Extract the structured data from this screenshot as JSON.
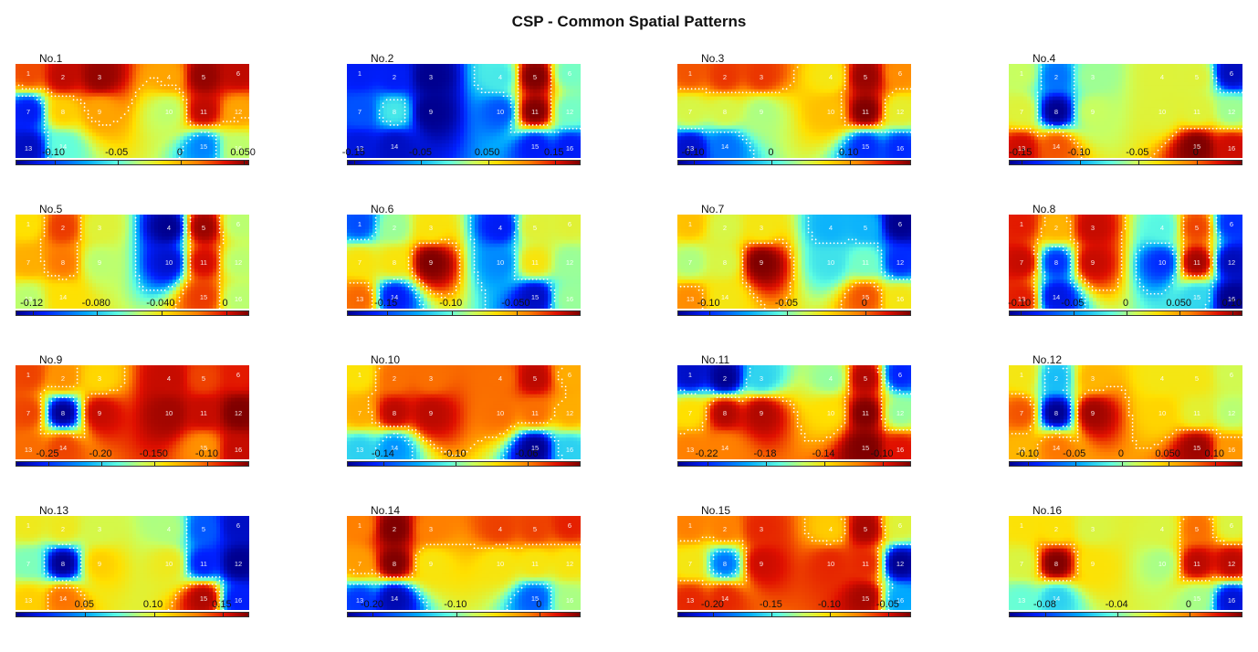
{
  "title": "CSP - Common Spatial Patterns",
  "colormap": [
    "#00008f",
    "#0020ff",
    "#00a8ff",
    "#60ffe0",
    "#c8ff60",
    "#ffe000",
    "#ff8000",
    "#e01000",
    "#7f0000"
  ],
  "contour_color": "#ffffff",
  "electrode_layout": {
    "rows": [
      [
        1,
        2,
        3,
        4,
        5,
        6
      ],
      [
        7,
        8,
        9,
        10,
        11,
        12
      ],
      [
        13,
        14,
        15,
        16
      ]
    ]
  },
  "chart_data": [
    {
      "type": "heatmap",
      "title": "No.1",
      "ticks": [
        "-0.10",
        "-0.05",
        "0",
        "0.050"
      ],
      "range": [
        -0.13,
        0.055
      ],
      "values": [
        0.02,
        0.04,
        0.05,
        0.0,
        0.05,
        0.04,
        -0.11,
        -0.01,
        0.0,
        -0.04,
        0.04,
        0.0,
        -0.12,
        -0.06,
        -0.09,
        -0.04
      ]
    },
    {
      "type": "heatmap",
      "title": "No.2",
      "ticks": [
        "-0.15",
        "-0.05",
        "0.050",
        "0.15"
      ],
      "range": [
        -0.16,
        0.19
      ],
      "values": [
        -0.12,
        -0.12,
        -0.16,
        -0.04,
        0.19,
        -0.02,
        -0.1,
        -0.04,
        -0.16,
        -0.1,
        0.19,
        -0.02,
        -0.13,
        -0.14,
        -0.12,
        -0.12
      ]
    },
    {
      "type": "heatmap",
      "title": "No.3",
      "ticks": [
        "-0.10",
        "0",
        "0.10"
      ],
      "range": [
        -0.12,
        0.18
      ],
      "values": [
        0.12,
        0.13,
        0.13,
        0.06,
        0.17,
        0.1,
        0.04,
        0.04,
        0.02,
        0.08,
        0.18,
        0.05,
        -0.1,
        -0.06,
        -0.08,
        -0.08
      ]
    },
    {
      "type": "heatmap",
      "title": "No.4",
      "ticks": [
        "-0.15",
        "-0.10",
        "-0.05",
        "0"
      ],
      "range": [
        -0.16,
        0.04
      ],
      "values": [
        -0.06,
        -0.12,
        -0.07,
        -0.05,
        -0.05,
        -0.15,
        -0.05,
        -0.16,
        -0.06,
        -0.05,
        -0.05,
        -0.07,
        0.02,
        0.0,
        0.04,
        0.02
      ]
    },
    {
      "type": "heatmap",
      "title": "No.5",
      "ticks": [
        "-0.12",
        "-0.080",
        "-0.040",
        "0"
      ],
      "range": [
        -0.13,
        0.015
      ],
      "values": [
        -0.04,
        -0.01,
        -0.05,
        -0.13,
        0.01,
        -0.06,
        -0.03,
        -0.02,
        -0.06,
        -0.12,
        0.0,
        -0.06,
        -0.06,
        -0.04,
        -0.01,
        -0.06
      ]
    },
    {
      "type": "heatmap",
      "title": "No.6",
      "ticks": [
        "-0.15",
        "-0.10",
        "-0.050"
      ],
      "range": [
        -0.18,
        0.0
      ],
      "values": [
        -0.15,
        -0.1,
        -0.07,
        -0.16,
        -0.08,
        -0.08,
        -0.07,
        -0.07,
        0.0,
        -0.14,
        -0.07,
        -0.1,
        -0.04,
        -0.16,
        -0.17,
        -0.1
      ]
    },
    {
      "type": "heatmap",
      "title": "No.7",
      "ticks": [
        "-0.10",
        "-0.05",
        "0"
      ],
      "range": [
        -0.12,
        0.03
      ],
      "values": [
        -0.02,
        -0.04,
        -0.03,
        -0.08,
        -0.08,
        -0.12,
        -0.05,
        -0.04,
        0.03,
        -0.07,
        -0.06,
        -0.1,
        -0.01,
        -0.03,
        0.0,
        -0.03
      ]
    },
    {
      "type": "heatmap",
      "title": "No.8",
      "ticks": [
        "-0.10",
        "-0.05",
        "0",
        "0.050",
        "0.10"
      ],
      "range": [
        -0.11,
        0.11
      ],
      "values": [
        0.08,
        0.04,
        0.09,
        -0.03,
        0.07,
        -0.08,
        0.09,
        -0.08,
        0.09,
        -0.08,
        0.1,
        -0.1,
        0.08,
        -0.09,
        -0.04,
        -0.11
      ]
    },
    {
      "type": "heatmap",
      "title": "No.9",
      "ticks": [
        "-0.25",
        "-0.20",
        "-0.150",
        "-0.10"
      ],
      "range": [
        -0.28,
        -0.06
      ],
      "values": [
        -0.1,
        -0.12,
        -0.14,
        -0.08,
        -0.1,
        -0.09,
        -0.1,
        -0.28,
        -0.08,
        -0.07,
        -0.08,
        -0.06,
        -0.11,
        -0.1,
        -0.12,
        -0.08
      ]
    },
    {
      "type": "heatmap",
      "title": "No.10",
      "ticks": [
        "-0.14",
        "-0.10",
        "-0.06"
      ],
      "range": [
        -0.16,
        -0.03
      ],
      "values": [
        -0.08,
        -0.06,
        -0.06,
        -0.06,
        -0.04,
        -0.07,
        -0.07,
        -0.04,
        -0.04,
        -0.06,
        -0.06,
        -0.07,
        -0.12,
        -0.13,
        -0.16,
        -0.12
      ]
    },
    {
      "type": "heatmap",
      "title": "No.11",
      "ticks": [
        "-0.22",
        "-0.18",
        "-0.14",
        "-0.10"
      ],
      "range": [
        -0.24,
        -0.08
      ],
      "values": [
        -0.23,
        -0.24,
        -0.19,
        -0.17,
        -0.09,
        -0.22,
        -0.14,
        -0.09,
        -0.09,
        -0.14,
        -0.08,
        -0.17,
        -0.12,
        -0.12,
        -0.08,
        -0.1
      ]
    },
    {
      "type": "heatmap",
      "title": "No.12",
      "ticks": [
        "-0.10",
        "-0.05",
        "0",
        "0.050",
        "0.10"
      ],
      "range": [
        -0.12,
        0.13
      ],
      "values": [
        0.03,
        -0.05,
        0.05,
        0.03,
        0.03,
        0.01,
        0.08,
        -0.12,
        0.12,
        0.04,
        0.02,
        0.0,
        0.05,
        0.07,
        0.12,
        0.06
      ]
    },
    {
      "type": "heatmap",
      "title": "No.13",
      "ticks": [
        "0.05",
        "0.10",
        "0.15"
      ],
      "range": [
        0.0,
        0.17
      ],
      "values": [
        0.1,
        0.1,
        0.09,
        0.08,
        0.03,
        0.01,
        0.07,
        0.0,
        0.11,
        0.1,
        0.02,
        0.0,
        0.11,
        0.13,
        0.16,
        0.02
      ]
    },
    {
      "type": "heatmap",
      "title": "No.14",
      "ticks": [
        "-0.20",
        "-0.10",
        "0"
      ],
      "range": [
        -0.23,
        0.05
      ],
      "values": [
        -0.02,
        0.05,
        -0.02,
        0.0,
        0.0,
        0.01,
        -0.03,
        0.05,
        -0.06,
        -0.06,
        -0.06,
        -0.06,
        -0.19,
        -0.22,
        -0.18,
        -0.1
      ]
    },
    {
      "type": "heatmap",
      "title": "No.15",
      "ticks": [
        "-0.20",
        "-0.15",
        "-0.10",
        "-0.05"
      ],
      "range": [
        -0.23,
        -0.03
      ],
      "values": [
        -0.08,
        -0.08,
        -0.06,
        -0.1,
        -0.04,
        -0.12,
        -0.11,
        -0.19,
        -0.05,
        -0.06,
        -0.06,
        -0.23,
        -0.06,
        -0.06,
        -0.04,
        -0.18
      ]
    },
    {
      "type": "heatmap",
      "title": "No.16",
      "ticks": [
        "-0.08",
        "-0.04",
        "0"
      ],
      "range": [
        -0.1,
        0.03
      ],
      "values": [
        -0.02,
        -0.02,
        -0.03,
        -0.03,
        0.0,
        -0.03,
        -0.03,
        0.03,
        -0.02,
        -0.04,
        0.02,
        0.02,
        -0.05,
        -0.06,
        -0.04,
        -0.09
      ]
    }
  ]
}
